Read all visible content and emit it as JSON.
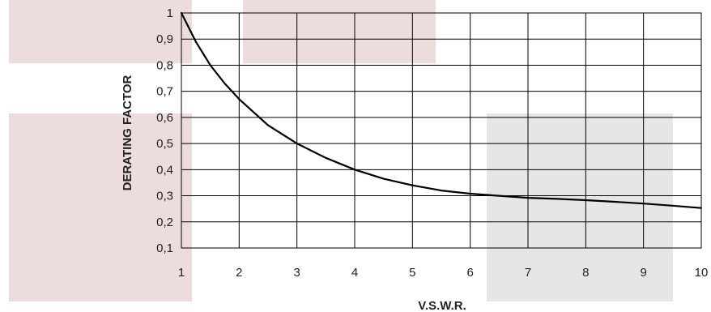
{
  "chart_data": {
    "type": "line",
    "title": "",
    "xlabel": "V.S.W.R.",
    "ylabel": "DERATING FACTOR",
    "xlim": [
      1,
      10
    ],
    "ylim": [
      0.1,
      1
    ],
    "x_ticks": [
      "1",
      "2",
      "3",
      "4",
      "5",
      "6",
      "7",
      "8",
      "9",
      "10"
    ],
    "y_ticks": [
      "0,1",
      "0,2",
      "0,3",
      "0,4",
      "0,5",
      "0,6",
      "0,7",
      "0,8",
      "0,9",
      "1"
    ],
    "grid": true,
    "legend": "none",
    "series": [
      {
        "x": [
          1,
          1.25,
          1.5,
          1.75,
          2,
          2.5,
          3,
          3.5,
          4,
          4.5,
          5,
          5.5,
          6,
          6.5,
          7,
          7.5,
          8,
          8.5,
          9,
          9.5,
          10
        ],
        "values": [
          1,
          0.89,
          0.8,
          0.73,
          0.67,
          0.57,
          0.5,
          0.445,
          0.4,
          0.365,
          0.34,
          0.32,
          0.308,
          0.3,
          0.292,
          0.288,
          0.283,
          0.277,
          0.27,
          0.262,
          0.253
        ]
      }
    ],
    "colors": {
      "line": "#000000",
      "grid": "#000000",
      "bg_pink": "#ecdcdc",
      "bg_gray": "#e6e6e6"
    }
  }
}
